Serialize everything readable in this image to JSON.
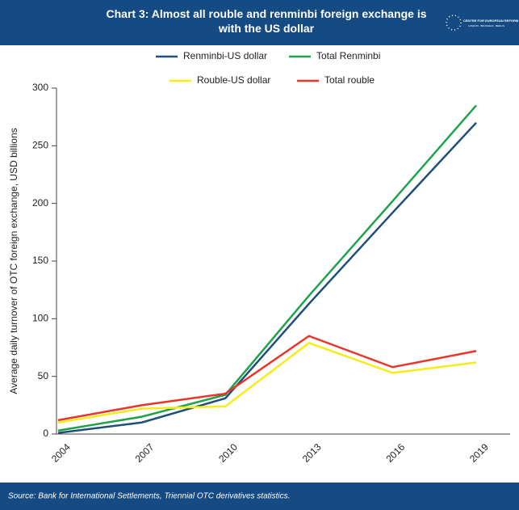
{
  "chart_data": {
    "type": "line",
    "title": "Chart 3: Almost all rouble and renminbi foreign exchange is with the US dollar",
    "logo": {
      "name": "CENTRE FOR EUROPEAN REFORM",
      "cities": "LONDON · BRUSSELS · BERLIN"
    },
    "y_label": "Average daily turnover of OTC foreign exchange, USD billions",
    "categories": [
      "2004",
      "2007",
      "2010",
      "2013",
      "2016",
      "2019"
    ],
    "series": [
      {
        "name": "Renminbi-US dollar",
        "color": "#1f4e79",
        "values": [
          1,
          10,
          31,
          113,
          192,
          270
        ]
      },
      {
        "name": "Total Renminbi",
        "color": "#1fa34a",
        "values": [
          3,
          15,
          34,
          120,
          202,
          285
        ]
      },
      {
        "name": "Rouble-US dollar",
        "color": "#f5ec1a",
        "values": [
          10,
          22,
          24,
          79,
          53,
          62
        ]
      },
      {
        "name": "Total rouble",
        "color": "#e8352b",
        "values": [
          12,
          25,
          35,
          85,
          58,
          72
        ]
      }
    ],
    "ylim": [
      0,
      300
    ],
    "yticks": [
      0,
      50,
      100,
      150,
      200,
      250,
      300
    ],
    "grid": false,
    "source": "Source: Bank for International Settlements, Triennial OTC derivatives statistics."
  }
}
